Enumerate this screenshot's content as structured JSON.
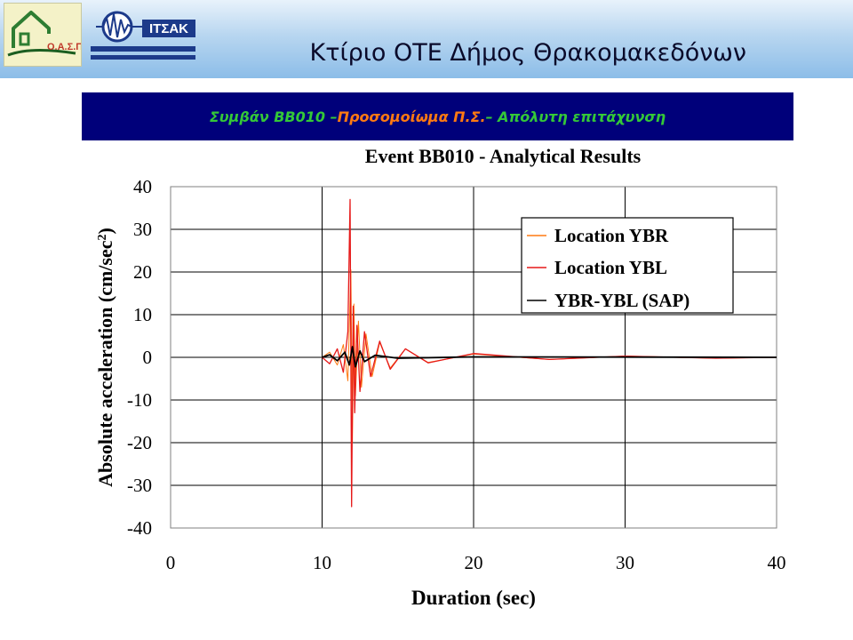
{
  "header": {
    "title": "Κτίριο ΟΤΕ Δήμος Θρακομακεδόνων",
    "logo_left_text": "Ο.Α.Σ.Π.",
    "logo_right_text": "ΙΤΣΑΚ"
  },
  "banner": {
    "part1": "Συμβάν BB010 – ",
    "part2": "Προσομοίωμα Π.Σ.",
    "part3": " – Απόλυτη επιτάχυνση"
  },
  "colors": {
    "banner_bg": "#00007a",
    "banner_green": "#34c838",
    "banner_orange": "#ff7a12",
    "series_ybr": "#ff7a12",
    "series_ybl": "#e61919",
    "series_sap": "#000000"
  },
  "chart_data": {
    "type": "line",
    "title": "Event BB010 - Analytical Results",
    "xlabel": "Duration (sec)",
    "ylabel_main": "Absolute acceleration (cm/sec",
    "ylabel_sup": "2",
    "ylabel_close": ")",
    "xlim": [
      0,
      40
    ],
    "ylim": [
      -40,
      40
    ],
    "xticks": [
      "0",
      "10",
      "20",
      "30",
      "40"
    ],
    "yticks": [
      "40",
      "30",
      "20",
      "10",
      "0",
      "-10",
      "-20",
      "-30",
      "-40"
    ],
    "grid": true,
    "legend_position": "top-right",
    "series": [
      {
        "name": "Location YBR",
        "x": [
          10.0,
          10.5,
          11.0,
          11.4,
          11.7,
          11.9,
          12.0,
          12.1,
          12.2,
          12.4,
          12.6,
          12.9,
          13.3,
          13.8,
          14.5,
          15.5,
          17.0,
          20.0,
          25.0,
          30.0,
          36.0,
          40.0
        ],
        "y": [
          0.0,
          1.2,
          -1.8,
          3.0,
          -5.5,
          20.5,
          -20.0,
          12.5,
          -9.0,
          8.5,
          -7.0,
          5.5,
          -4.5,
          3.5,
          -2.5,
          2.0,
          -1.2,
          0.8,
          -0.5,
          0.3,
          -0.2,
          0.0
        ]
      },
      {
        "name": "Location YBL",
        "x": [
          10.0,
          10.5,
          11.0,
          11.4,
          11.7,
          11.85,
          11.95,
          12.05,
          12.15,
          12.3,
          12.5,
          12.8,
          13.2,
          13.8,
          14.5,
          15.5,
          17.0,
          20.0,
          25.0,
          30.0,
          36.0,
          40.0
        ],
        "y": [
          0.0,
          -1.5,
          2.0,
          -3.5,
          6.0,
          37.0,
          -35.0,
          12.0,
          -13.0,
          7.5,
          -8.0,
          6.0,
          -4.5,
          3.8,
          -2.8,
          2.0,
          -1.3,
          0.9,
          -0.5,
          0.3,
          -0.2,
          0.0
        ]
      },
      {
        "name": "YBR-YBL (SAP)",
        "x": [
          10.0,
          10.5,
          11.0,
          11.5,
          11.8,
          12.0,
          12.2,
          12.5,
          12.8,
          13.5,
          15.0,
          20.0,
          40.0
        ],
        "y": [
          0.0,
          0.6,
          -0.8,
          1.2,
          -1.8,
          2.5,
          -2.2,
          1.5,
          -1.0,
          0.5,
          -0.2,
          0.1,
          0.0
        ]
      }
    ]
  }
}
